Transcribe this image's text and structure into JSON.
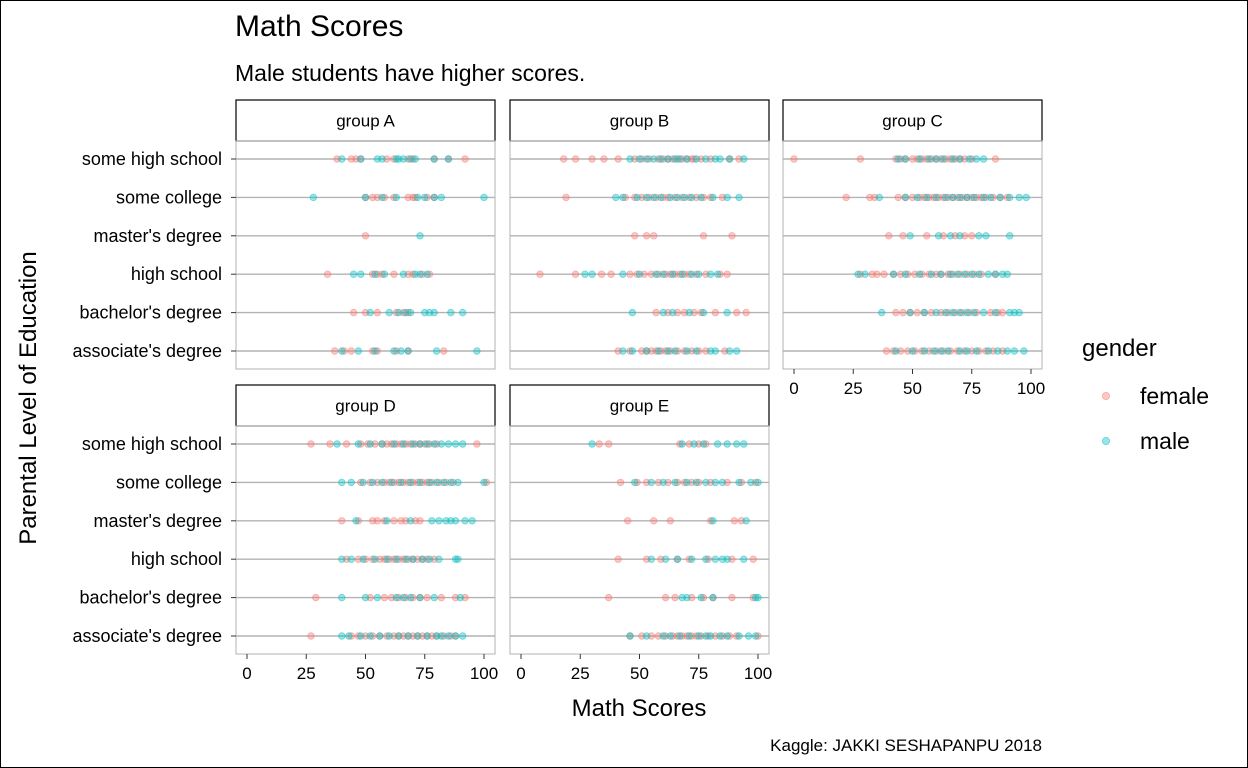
{
  "title": "Math Scores",
  "subtitle": "Male students have higher scores.",
  "caption": "Kaggle: JAKKI SESHAPANPU 2018",
  "colors": {
    "female": "#F8766D",
    "male": "#00BFC4"
  },
  "chart_data": {
    "type": "scatter",
    "title": "Math Scores",
    "subtitle": "Male students have higher scores.",
    "xlabel": "Math Scores",
    "ylabel": "Parental Level of Education",
    "xlim": [
      0,
      100
    ],
    "xticks": [
      0,
      25,
      50,
      75,
      100
    ],
    "categories": [
      "associate's degree",
      "bachelor's degree",
      "high school",
      "master's degree",
      "some college",
      "some high school"
    ],
    "legend": {
      "title": "gender",
      "position": "right",
      "entries": [
        "female",
        "male"
      ]
    },
    "grid": true,
    "facets": [
      {
        "label": "group A",
        "points": {
          "some high school": {
            "female": [
              38,
              44,
              46,
              48,
              59,
              62,
              68,
              70,
              79,
              85,
              92
            ],
            "male": [
              40,
              48,
              55,
              57,
              63,
              64,
              66,
              69,
              71,
              79,
              85
            ]
          },
          "some college": {
            "female": [
              50,
              53,
              55,
              58,
              62,
              68,
              70,
              71,
              76,
              79
            ],
            "male": [
              28,
              50,
              57,
              63,
              72,
              75,
              79,
              82,
              100
            ]
          },
          "master's degree": {
            "female": [
              50
            ],
            "male": [
              73
            ]
          },
          "high school": {
            "female": [
              34,
              53,
              55,
              57,
              62,
              68,
              70,
              74,
              77
            ],
            "male": [
              45,
              48,
              54,
              58,
              66,
              71,
              73,
              76
            ]
          },
          "bachelor's degree": {
            "female": [
              45,
              50,
              55,
              63,
              66,
              68
            ],
            "male": [
              52,
              60,
              64,
              67,
              69,
              75,
              77,
              79,
              86,
              91
            ]
          },
          "associate's degree": {
            "female": [
              37,
              41,
              44,
              53,
              55,
              63,
              68,
              83
            ],
            "male": [
              40,
              47,
              54,
              62,
              65,
              68,
              80,
              97
            ]
          }
        }
      },
      {
        "label": "group B",
        "points": {
          "some high school": {
            "female": [
              18,
              23,
              30,
              35,
              41,
              48,
              51,
              54,
              58,
              60,
              62,
              64,
              66,
              68,
              70,
              72,
              73,
              76,
              80,
              88,
              92
            ],
            "male": [
              46,
              50,
              53,
              56,
              59,
              62,
              65,
              67,
              70,
              74,
              78,
              82,
              84,
              88,
              94
            ]
          },
          "some college": {
            "female": [
              19,
              44,
              48,
              51,
              54,
              57,
              60,
              62,
              65,
              68,
              71,
              74,
              77,
              80,
              85
            ],
            "male": [
              40,
              43,
              49,
              53,
              56,
              59,
              63,
              66,
              69,
              72,
              76,
              81,
              87,
              92
            ]
          },
          "master's degree": {
            "female": [
              48,
              53,
              56,
              77,
              89
            ],
            "male": []
          },
          "high school": {
            "female": [
              8,
              23,
              34,
              38,
              46,
              49,
              52,
              55,
              58,
              61,
              63,
              65,
              67,
              69,
              71,
              74,
              78,
              84,
              87
            ],
            "male": [
              27,
              30,
              43,
              50,
              57,
              60,
              64,
              68,
              72,
              75,
              80,
              83
            ]
          },
          "bachelor's degree": {
            "female": [
              57,
              62,
              66,
              69,
              73,
              76,
              82,
              91,
              95
            ],
            "male": [
              47,
              60,
              64,
              71,
              77,
              87
            ]
          },
          "associate's degree": {
            "female": [
              41,
              46,
              51,
              53,
              55,
              57,
              59,
              61,
              63,
              66,
              69,
              72,
              75,
              78,
              86
            ],
            "male": [
              43,
              47,
              53,
              58,
              62,
              65,
              70,
              74,
              80,
              82,
              88,
              91
            ]
          }
        }
      },
      {
        "label": "group C",
        "points": {
          "some high school": {
            "female": [
              0,
              28,
              43,
              45,
              47,
              50,
              52,
              54,
              56,
              58,
              60,
              62,
              64,
              66,
              68,
              70,
              72,
              75,
              85
            ],
            "male": [
              44,
              47,
              53,
              57,
              60,
              63,
              67,
              70,
              74,
              77,
              80
            ]
          },
          "some college": {
            "female": [
              22,
              32,
              34,
              44,
              47,
              50,
              53,
              55,
              57,
              59,
              61,
              63,
              65,
              67,
              69,
              71,
              73,
              75,
              77,
              79,
              81,
              84,
              87,
              90
            ],
            "male": [
              36,
              47,
              52,
              56,
              60,
              64,
              67,
              70,
              73,
              76,
              80,
              83,
              87,
              91,
              95,
              98
            ]
          },
          "master's degree": {
            "female": [
              40,
              46,
              56,
              63,
              68,
              72,
              75
            ],
            "male": [
              49,
              61,
              66,
              70,
              78,
              81,
              91
            ]
          },
          "high school": {
            "female": [
              28,
              33,
              35,
              38,
              42,
              45,
              48,
              51,
              54,
              57,
              60,
              62,
              65,
              67,
              70,
              73,
              76,
              79,
              85
            ],
            "male": [
              27,
              30,
              42,
              47,
              53,
              58,
              62,
              66,
              69,
              72,
              75,
              78,
              82,
              85,
              88,
              90
            ]
          },
          "bachelor's degree": {
            "female": [
              43,
              46,
              49,
              52,
              55,
              58,
              62,
              65,
              68,
              71,
              74,
              77,
              83,
              86,
              88
            ],
            "male": [
              37,
              49,
              55,
              60,
              64,
              67,
              70,
              73,
              76,
              80,
              85,
              91,
              93,
              95
            ]
          },
          "associate's degree": {
            "female": [
              39,
              42,
              45,
              48,
              51,
              54,
              57,
              60,
              63,
              66,
              69,
              72,
              75,
              78,
              81,
              84,
              88
            ],
            "male": [
              43,
              50,
              55,
              59,
              62,
              65,
              70,
              73,
              77,
              82,
              86,
              90,
              93,
              97
            ]
          }
        }
      },
      {
        "label": "group D",
        "points": {
          "some high school": {
            "female": [
              27,
              35,
              42,
              48,
              51,
              54,
              57,
              59,
              61,
              63,
              65,
              67,
              69,
              71,
              73,
              75,
              77,
              80,
              97
            ],
            "male": [
              38,
              47,
              52,
              57,
              62,
              66,
              70,
              73,
              76,
              79,
              82,
              85,
              88,
              91
            ]
          },
          "some college": {
            "female": [
              48,
              52,
              55,
              58,
              60,
              62,
              64,
              66,
              68,
              70,
              72,
              74,
              76,
              78,
              81,
              84,
              87,
              101
            ],
            "male": [
              40,
              44,
              49,
              53,
              57,
              61,
              65,
              69,
              73,
              77,
              80,
              83,
              86,
              89,
              100
            ]
          },
          "master's degree": {
            "female": [
              40,
              47,
              53,
              55,
              58,
              62,
              65,
              67,
              71,
              73
            ],
            "male": [
              46,
              59,
              69,
              78,
              81,
              84,
              86,
              88,
              92,
              95
            ]
          },
          "high school": {
            "female": [
              42,
              47,
              50,
              53,
              56,
              58,
              60,
              62,
              64,
              66,
              68,
              70,
              72,
              74,
              76,
              79
            ],
            "male": [
              40,
              44,
              49,
              54,
              59,
              63,
              67,
              70,
              74,
              77,
              81,
              88,
              89
            ]
          },
          "bachelor's degree": {
            "female": [
              29,
              52,
              58,
              61,
              64,
              67,
              70,
              73,
              76,
              82,
              88,
              92
            ],
            "male": [
              40,
              50,
              55,
              63,
              66,
              69,
              73,
              79,
              90
            ]
          },
          "associate's degree": {
            "female": [
              27,
              44,
              47,
              50,
              53,
              56,
              59,
              62,
              64,
              66,
              68,
              70,
              72,
              74,
              76,
              78,
              80,
              83,
              86,
              88
            ],
            "male": [
              40,
              43,
              48,
              52,
              56,
              60,
              64,
              68,
              72,
              76,
              80,
              82,
              85,
              88,
              91
            ]
          }
        }
      },
      {
        "label": "group E",
        "points": {
          "some high school": {
            "female": [
              33,
              37,
              67,
              71,
              75,
              78
            ],
            "male": [
              30,
              68,
              73,
              77,
              83,
              87,
              91,
              94
            ]
          },
          "some college": {
            "female": [
              42,
              49,
              53,
              58,
              62,
              66,
              69,
              72,
              75,
              80,
              87,
              93,
              99
            ],
            "male": [
              48,
              55,
              60,
              65,
              70,
              74,
              78,
              82,
              85,
              92,
              97,
              100
            ]
          },
          "master's degree": {
            "female": [
              45,
              56,
              63,
              80,
              90,
              93
            ],
            "male": [
              81,
              95
            ]
          },
          "high school": {
            "female": [
              41,
              53,
              59,
              66,
              71,
              79,
              89,
              98
            ],
            "male": [
              55,
              61,
              66,
              72,
              78,
              82,
              85,
              87,
              94
            ]
          },
          "bachelor's degree": {
            "female": [
              37,
              61,
              65,
              72,
              77,
              81,
              89,
              98
            ],
            "male": [
              68,
              70,
              76,
              81,
              99,
              100
            ]
          },
          "associate's degree": {
            "female": [
              46,
              51,
              55,
              58,
              61,
              64,
              66,
              68,
              70,
              72,
              74,
              76,
              79,
              82,
              85,
              88,
              91,
              100
            ],
            "male": [
              46,
              53,
              60,
              63,
              67,
              71,
              75,
              78,
              80,
              84,
              87,
              92,
              96,
              99
            ]
          }
        }
      }
    ]
  }
}
